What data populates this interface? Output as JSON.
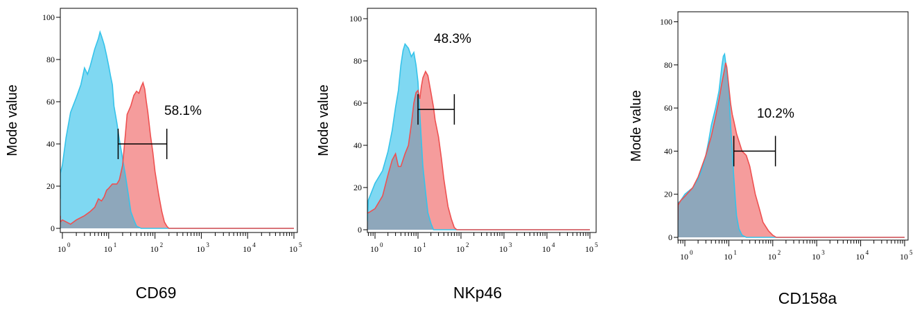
{
  "chart_data": [
    {
      "type": "histogram",
      "xlabel": "CD69",
      "ylabel": "Mode value",
      "x_scale": "log",
      "xlim": [
        0.5,
        100000
      ],
      "ylim": [
        0,
        105
      ],
      "x_ticks": [
        {
          "base": "10",
          "exp": "0"
        },
        {
          "base": "10",
          "exp": "1"
        },
        {
          "base": "10",
          "exp": "2"
        },
        {
          "base": "10",
          "exp": "3"
        },
        {
          "base": "10",
          "exp": "4"
        },
        {
          "base": "10",
          "exp": "5"
        }
      ],
      "y_ticks": [
        "0",
        "20",
        "40",
        "60",
        "80",
        "100"
      ],
      "gate": {
        "label": "58.1%",
        "x_start": 16,
        "x_end": 180,
        "y": 40
      },
      "series": [
        {
          "role": "control",
          "color": "#35c3ea",
          "fill": "#7fd8f2",
          "points": [
            [
              0.5,
              14
            ],
            [
              0.6,
              18
            ],
            [
              0.7,
              22
            ],
            [
              0.8,
              26
            ],
            [
              1.0,
              30
            ],
            [
              1.2,
              43
            ],
            [
              1.5,
              55
            ],
            [
              2.0,
              62
            ],
            [
              2.5,
              68
            ],
            [
              3.0,
              76
            ],
            [
              3.5,
              73
            ],
            [
              4.0,
              77
            ],
            [
              5.0,
              85
            ],
            [
              6.0,
              90
            ],
            [
              6.5,
              93
            ],
            [
              7.0,
              91
            ],
            [
              8.0,
              87
            ],
            [
              9.0,
              82
            ],
            [
              10,
              77
            ],
            [
              11,
              72
            ],
            [
              12,
              68
            ],
            [
              13,
              58
            ],
            [
              15,
              50
            ],
            [
              17,
              42
            ],
            [
              20,
              33
            ],
            [
              23,
              25
            ],
            [
              27,
              15
            ],
            [
              30,
              8
            ],
            [
              35,
              4
            ],
            [
              40,
              1
            ],
            [
              50,
              0
            ],
            [
              100000,
              0
            ]
          ]
        },
        {
          "role": "stained",
          "color": "#ee5050",
          "fill": "#f59c9c",
          "points": [
            [
              0.5,
              6
            ],
            [
              0.7,
              3
            ],
            [
              1.0,
              4
            ],
            [
              1.5,
              2
            ],
            [
              2.0,
              4
            ],
            [
              3.0,
              6
            ],
            [
              4.0,
              8
            ],
            [
              5.0,
              10
            ],
            [
              6.0,
              14
            ],
            [
              7.0,
              13
            ],
            [
              8.0,
              15
            ],
            [
              9.0,
              18
            ],
            [
              10,
              19
            ],
            [
              12,
              21
            ],
            [
              15,
              21
            ],
            [
              17,
              23
            ],
            [
              20,
              30
            ],
            [
              23,
              45
            ],
            [
              25,
              54
            ],
            [
              30,
              58
            ],
            [
              35,
              63
            ],
            [
              40,
              65
            ],
            [
              45,
              64
            ],
            [
              50,
              67
            ],
            [
              55,
              69
            ],
            [
              60,
              66
            ],
            [
              65,
              60
            ],
            [
              70,
              55
            ],
            [
              80,
              44
            ],
            [
              90,
              36
            ],
            [
              100,
              27
            ],
            [
              120,
              16
            ],
            [
              140,
              8
            ],
            [
              160,
              3
            ],
            [
              180,
              1
            ],
            [
              200,
              0
            ],
            [
              100000,
              0
            ]
          ]
        }
      ]
    },
    {
      "type": "histogram",
      "xlabel": "NKp46",
      "ylabel": "Mode value",
      "x_scale": "log",
      "xlim": [
        0.5,
        100000
      ],
      "ylim": [
        0,
        105
      ],
      "x_ticks": [
        {
          "base": "10",
          "exp": "0"
        },
        {
          "base": "10",
          "exp": "1"
        },
        {
          "base": "10",
          "exp": "2"
        },
        {
          "base": "10",
          "exp": "3"
        },
        {
          "base": "10",
          "exp": "4"
        },
        {
          "base": "10",
          "exp": "5"
        }
      ],
      "y_ticks": [
        "0",
        "20",
        "40",
        "60",
        "80",
        "100"
      ],
      "gate": {
        "label": "48.3%",
        "x_start": 10,
        "x_end": 70,
        "y": 57
      },
      "series": [
        {
          "role": "control",
          "color": "#35c3ea",
          "fill": "#7fd8f2",
          "points": [
            [
              0.5,
              4
            ],
            [
              0.7,
              14
            ],
            [
              1.0,
              22
            ],
            [
              1.5,
              28
            ],
            [
              2.0,
              37
            ],
            [
              2.5,
              47
            ],
            [
              3.0,
              58
            ],
            [
              3.5,
              66
            ],
            [
              4.0,
              78
            ],
            [
              4.5,
              85
            ],
            [
              5.0,
              88
            ],
            [
              6.0,
              86
            ],
            [
              7.0,
              82
            ],
            [
              8.0,
              84
            ],
            [
              9.0,
              78
            ],
            [
              10,
              70
            ],
            [
              11,
              55
            ],
            [
              12,
              42
            ],
            [
              13,
              30
            ],
            [
              15,
              18
            ],
            [
              17,
              8
            ],
            [
              20,
              3
            ],
            [
              23,
              0
            ],
            [
              100000,
              0
            ]
          ]
        },
        {
          "role": "stained",
          "color": "#ee5050",
          "fill": "#f59c9c",
          "points": [
            [
              0.5,
              8
            ],
            [
              0.7,
              8
            ],
            [
              1.0,
              10
            ],
            [
              1.5,
              16
            ],
            [
              2.0,
              26
            ],
            [
              2.5,
              33
            ],
            [
              3.0,
              36
            ],
            [
              3.5,
              30
            ],
            [
              4.0,
              30
            ],
            [
              5.0,
              36
            ],
            [
              6.0,
              40
            ],
            [
              7.0,
              50
            ],
            [
              8.0,
              60
            ],
            [
              9.0,
              65
            ],
            [
              10,
              66
            ],
            [
              11,
              62
            ],
            [
              12,
              68
            ],
            [
              13,
              72
            ],
            [
              15,
              75
            ],
            [
              17,
              73
            ],
            [
              20,
              65
            ],
            [
              23,
              58
            ],
            [
              25,
              52
            ],
            [
              30,
              44
            ],
            [
              35,
              34
            ],
            [
              40,
              24
            ],
            [
              45,
              17
            ],
            [
              50,
              11
            ],
            [
              60,
              5
            ],
            [
              70,
              1
            ],
            [
              80,
              0
            ],
            [
              100000,
              0
            ]
          ]
        }
      ]
    },
    {
      "type": "histogram",
      "xlabel": "CD158a",
      "ylabel": "Mode value",
      "x_scale": "log",
      "xlim": [
        0.5,
        100000
      ],
      "ylim": [
        0,
        105
      ],
      "x_ticks": [
        {
          "base": "10",
          "exp": "0"
        },
        {
          "base": "10",
          "exp": "1"
        },
        {
          "base": "10",
          "exp": "2"
        },
        {
          "base": "10",
          "exp": "3"
        },
        {
          "base": "10",
          "exp": "4"
        },
        {
          "base": "10",
          "exp": "5"
        }
      ],
      "y_ticks": [
        "0",
        "20",
        "40",
        "60",
        "80",
        "100"
      ],
      "gate": {
        "label": "10.2%",
        "x_start": 13,
        "x_end": 115,
        "y": 40
      },
      "series": [
        {
          "role": "control",
          "color": "#35c3ea",
          "fill": "#7fd8f2",
          "points": [
            [
              0.5,
              8
            ],
            [
              0.6,
              13
            ],
            [
              0.7,
              16
            ],
            [
              0.8,
              17
            ],
            [
              1.0,
              20
            ],
            [
              1.5,
              23
            ],
            [
              2.0,
              27
            ],
            [
              2.5,
              32
            ],
            [
              3.0,
              38
            ],
            [
              3.5,
              45
            ],
            [
              4.0,
              52
            ],
            [
              5.0,
              60
            ],
            [
              6.0,
              68
            ],
            [
              7.0,
              80
            ],
            [
              7.5,
              84
            ],
            [
              8.0,
              85
            ],
            [
              9.0,
              77
            ],
            [
              10,
              68
            ],
            [
              11,
              52
            ],
            [
              12,
              40
            ],
            [
              13,
              28
            ],
            [
              14,
              18
            ],
            [
              15,
              10
            ],
            [
              17,
              4
            ],
            [
              20,
              1
            ],
            [
              25,
              0
            ],
            [
              100000,
              0
            ]
          ]
        },
        {
          "role": "stained",
          "color": "#ee5050",
          "fill": "#f59c9c",
          "points": [
            [
              0.5,
              8
            ],
            [
              0.6,
              12
            ],
            [
              0.7,
              15
            ],
            [
              0.8,
              17
            ],
            [
              1.0,
              19
            ],
            [
              1.5,
              23
            ],
            [
              2.0,
              28
            ],
            [
              3.0,
              38
            ],
            [
              4.0,
              47
            ],
            [
              5.0,
              56
            ],
            [
              6.0,
              64
            ],
            [
              7.0,
              72
            ],
            [
              8.0,
              78
            ],
            [
              8.5,
              81
            ],
            [
              9.0,
              79
            ],
            [
              10,
              70
            ],
            [
              11,
              62
            ],
            [
              12,
              57
            ],
            [
              13,
              54
            ],
            [
              15,
              48
            ],
            [
              18,
              43
            ],
            [
              20,
              40
            ],
            [
              25,
              38
            ],
            [
              30,
              33
            ],
            [
              35,
              26
            ],
            [
              40,
              20
            ],
            [
              50,
              13
            ],
            [
              60,
              7
            ],
            [
              80,
              3
            ],
            [
              100,
              1
            ],
            [
              120,
              0
            ],
            [
              100000,
              0
            ]
          ]
        }
      ]
    }
  ]
}
